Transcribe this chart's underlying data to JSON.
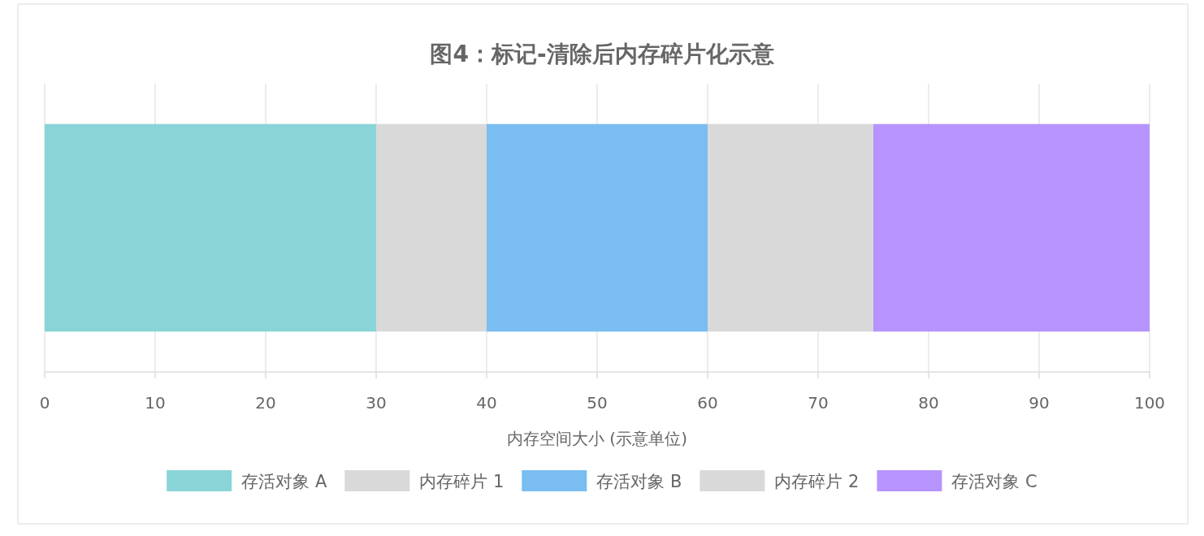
{
  "chart_data": {
    "type": "bar",
    "orientation": "horizontal",
    "stacked": true,
    "title": "图4：标记-清除后内存碎片化示意",
    "xlabel": "内存空间大小 (示意单位)",
    "categories": [
      null
    ],
    "series": [
      {
        "name": "存活对象 A",
        "color": "#89d4d6",
        "values": [
          30
        ]
      },
      {
        "name": "内存碎片 1",
        "color": "#d9d9d9",
        "values": [
          10
        ]
      },
      {
        "name": "存活对象 B",
        "color": "#79bdf1",
        "values": [
          20
        ]
      },
      {
        "name": "内存碎片 2",
        "color": "#d9d9d9",
        "values": [
          15
        ]
      },
      {
        "name": "存活对象 C",
        "color": "#b794fd",
        "values": [
          25
        ]
      }
    ],
    "xlim": [
      0,
      100
    ],
    "xticks": [
      0,
      10,
      20,
      30,
      40,
      50,
      60,
      70,
      80,
      90,
      100
    ],
    "grid": "x",
    "legend": "bottom",
    "tick_labels": "x"
  }
}
